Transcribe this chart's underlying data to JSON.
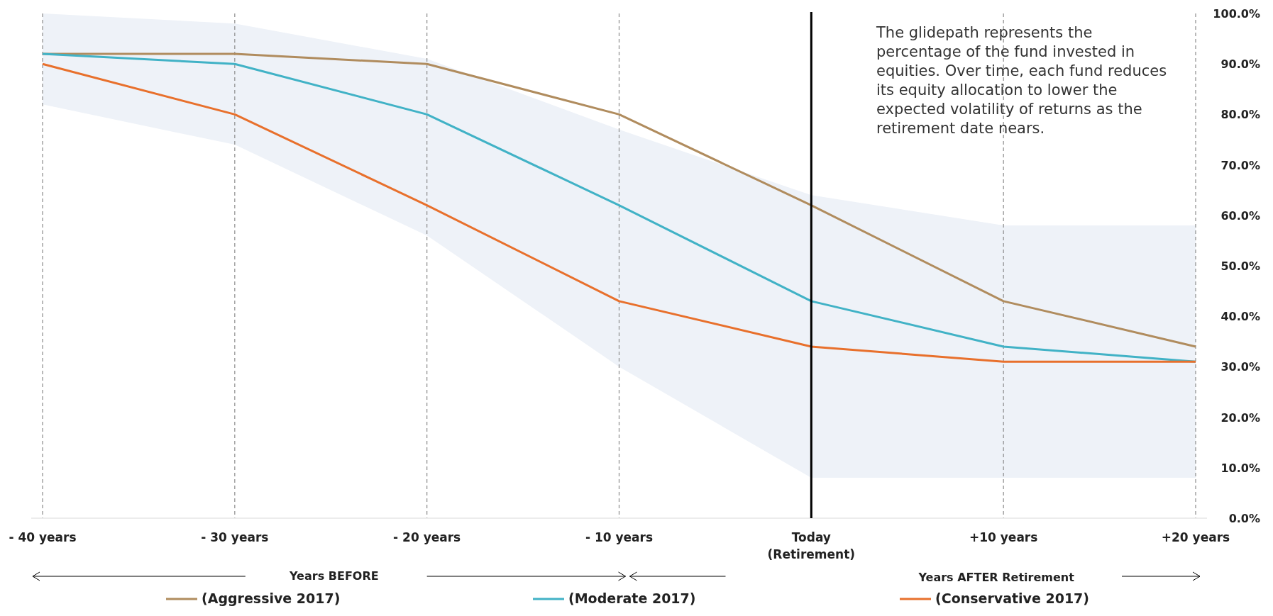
{
  "chart_data": {
    "type": "line",
    "categories": [
      "- 40 years",
      "- 30 years",
      "- 20 years",
      "- 10 years",
      "Today\n(Retirement)",
      "+10 years",
      "+20 years"
    ],
    "series": [
      {
        "name": "(Aggressive 2017)",
        "color": "#b08c5e",
        "values": [
          92,
          92,
          90,
          80,
          62,
          43,
          34
        ]
      },
      {
        "name": "(Moderate 2017)",
        "color": "#41b2c6",
        "values": [
          92,
          90,
          80,
          62,
          43,
          34,
          31
        ],
        "lower": [
          82,
          74,
          56,
          30,
          8,
          8,
          8
        ],
        "upper": [
          100,
          98,
          91,
          77,
          64,
          58,
          58
        ]
      },
      {
        "name": "(Conservative 2017)",
        "color": "#e8702c",
        "values": [
          90,
          80,
          62,
          43,
          34,
          31,
          31
        ]
      }
    ],
    "ylim": [
      0,
      100
    ],
    "yticks": [
      {
        "value": 0,
        "label": "0.0%"
      },
      {
        "value": 10,
        "label": "10.0%"
      },
      {
        "value": 20,
        "label": "20.0%"
      },
      {
        "value": 30,
        "label": "30.0%"
      },
      {
        "value": 40,
        "label": "40.0%"
      },
      {
        "value": 50,
        "label": "50.0%"
      },
      {
        "value": 60,
        "label": "60.0%"
      },
      {
        "value": 70,
        "label": "70.0%"
      },
      {
        "value": 80,
        "label": "80.0%"
      },
      {
        "value": 90,
        "label": "90.0%"
      },
      {
        "value": 100,
        "label": "100.0%"
      }
    ],
    "grid": "x",
    "legend": "bottom",
    "marker": "none",
    "line_style": "solid",
    "ref_lines": [
      {
        "axis": "x",
        "value": "Today\n(Retirement)",
        "color": "#000000"
      }
    ],
    "annotations": [
      "The glidepath represents the percentage of the fund invested in equities. Over time, each fund reduces its equity allocation to lower the expected volatility of returns as the retirement date nears.",
      "Years BEFORE",
      "Years AFTER Retirement"
    ]
  }
}
